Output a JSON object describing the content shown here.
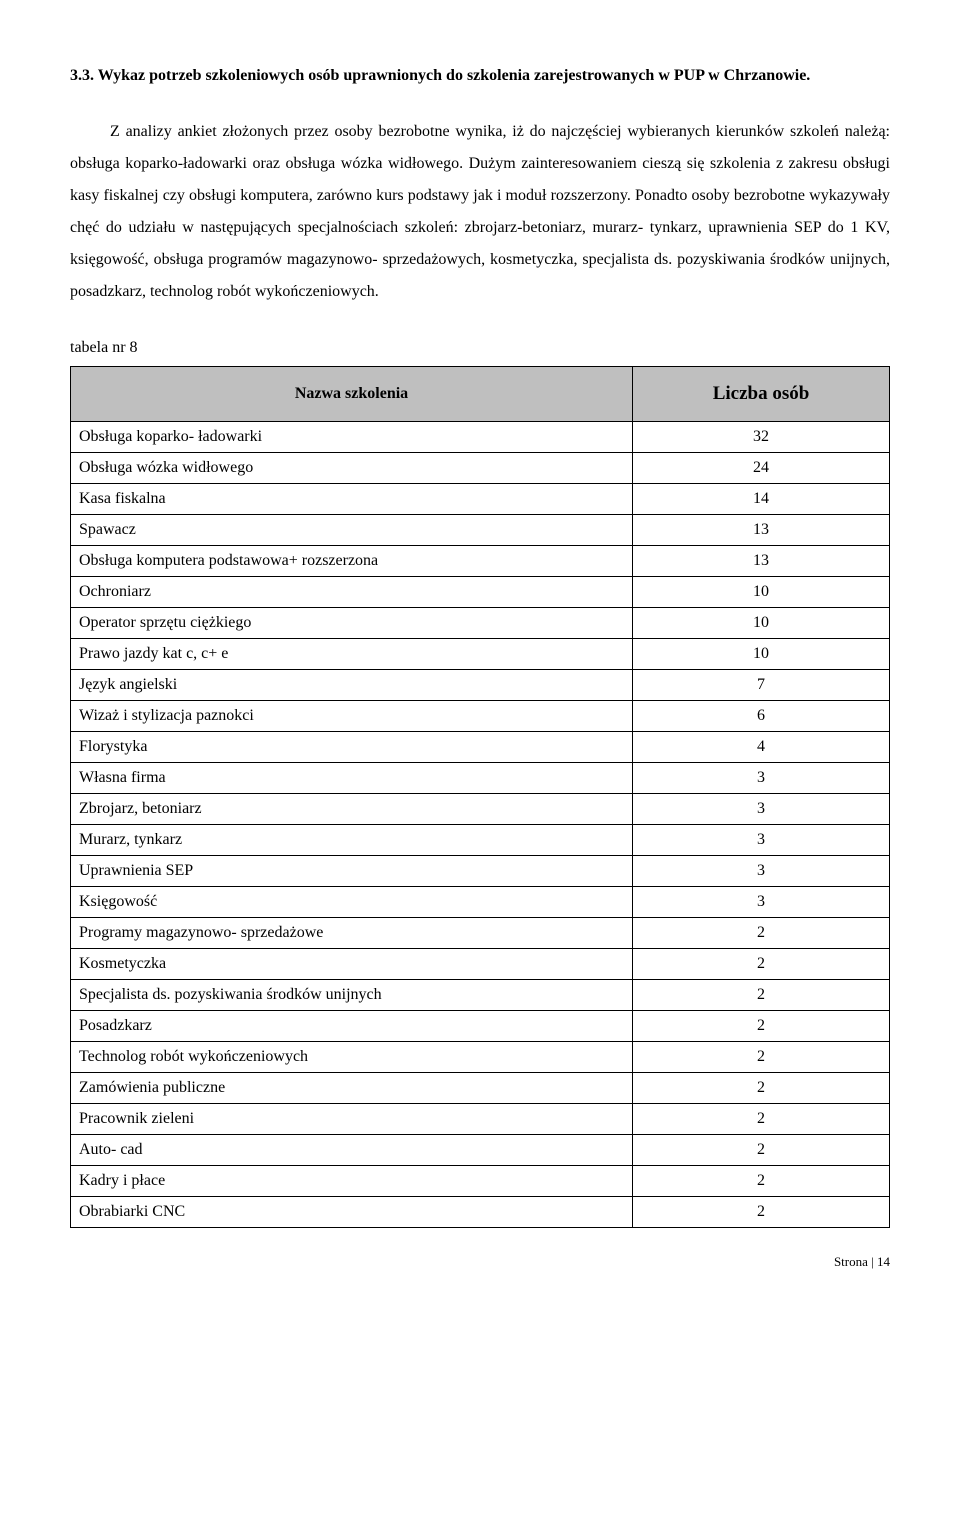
{
  "heading": "3.3. Wykaz potrzeb szkoleniowych osób uprawnionych do szkolenia zarejestrowanych w PUP w Chrzanowie.",
  "paragraph": "Z analizy ankiet złożonych przez osoby bezrobotne wynika, iż do najczęściej wybieranych kierunków szkoleń należą: obsługa koparko-ładowarki oraz obsługa wózka widłowego. Dużym zainteresowaniem cieszą się szkolenia z zakresu obsługi kasy fiskalnej czy obsługi komputera, zarówno kurs podstawy jak i moduł rozszerzony. Ponadto osoby bezrobotne wykazywały chęć do udziału w następujących specjalnościach szkoleń: zbrojarz-betoniarz, murarz- tynkarz, uprawnienia SEP do 1 KV, księgowość, obsługa programów magazynowo- sprzedażowych, kosmetyczka, specjalista ds. pozyskiwania środków unijnych, posadzkarz, technolog robót wykończeniowych.",
  "table_label": "tabela nr 8",
  "table": {
    "header_name": "Nazwa szkolenia",
    "header_count": "Liczba osób",
    "rows": [
      {
        "name": "Obsługa koparko- ładowarki",
        "count": "32"
      },
      {
        "name": "Obsługa wózka widłowego",
        "count": "24"
      },
      {
        "name": "Kasa fiskalna",
        "count": "14"
      },
      {
        "name": "Spawacz",
        "count": "13"
      },
      {
        "name": "Obsługa komputera podstawowa+ rozszerzona",
        "count": "13"
      },
      {
        "name": "Ochroniarz",
        "count": "10"
      },
      {
        "name": "Operator sprzętu ciężkiego",
        "count": "10"
      },
      {
        "name": "Prawo jazdy kat c, c+ e",
        "count": "10"
      },
      {
        "name": "Język angielski",
        "count": "7"
      },
      {
        "name": "Wizaż i stylizacja paznokci",
        "count": "6"
      },
      {
        "name": "Florystyka",
        "count": "4"
      },
      {
        "name": "Własna firma",
        "count": "3"
      },
      {
        "name": "Zbrojarz, betoniarz",
        "count": "3"
      },
      {
        "name": "Murarz, tynkarz",
        "count": "3"
      },
      {
        "name": "Uprawnienia SEP",
        "count": "3"
      },
      {
        "name": "Księgowość",
        "count": "3"
      },
      {
        "name": "Programy magazynowo- sprzedażowe",
        "count": "2"
      },
      {
        "name": "Kosmetyczka",
        "count": "2"
      },
      {
        "name": "Specjalista ds. pozyskiwania środków unijnych",
        "count": "2"
      },
      {
        "name": "Posadzkarz",
        "count": "2"
      },
      {
        "name": "Technolog robót wykończeniowych",
        "count": "2"
      },
      {
        "name": "Zamówienia publiczne",
        "count": "2"
      },
      {
        "name": "Pracownik zieleni",
        "count": "2"
      },
      {
        "name": "Auto- cad",
        "count": "2"
      },
      {
        "name": "Kadry i płace",
        "count": "2"
      },
      {
        "name": "Obrabiarki CNC",
        "count": "2"
      }
    ]
  },
  "footer": "Strona | 14"
}
